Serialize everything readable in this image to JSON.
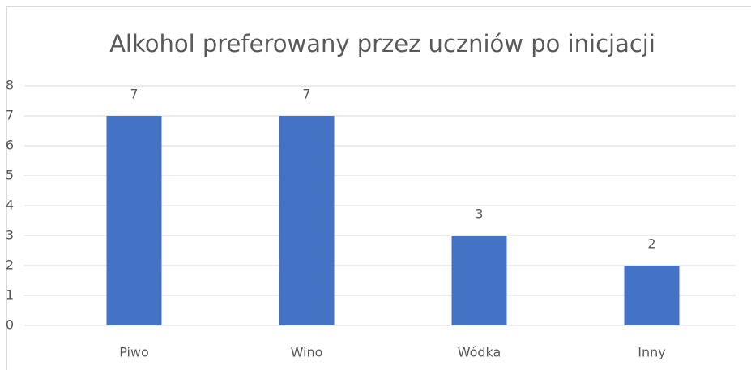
{
  "chart_data": {
    "type": "bar",
    "title": "Alkohol preferowany przez uczniów po inicjacji",
    "categories": [
      "Piwo",
      "Wino",
      "Wódka",
      "Inny"
    ],
    "values": [
      7,
      7,
      3,
      2
    ],
    "color": "#4472c4",
    "ylim": [
      0,
      8
    ],
    "yticks": [
      0,
      1,
      2,
      3,
      4,
      5,
      6,
      7,
      8
    ],
    "grid": true,
    "data_labels": true
  }
}
